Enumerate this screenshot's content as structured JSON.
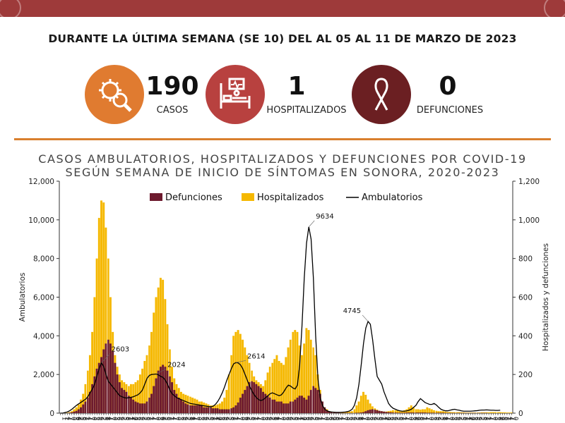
{
  "header": {
    "headline": "DURANTE LA ÚLTIMA SEMANA (SE 10) DEL AL 05 AL 11 DE MARZO DE 2023"
  },
  "stats": [
    {
      "value": "190",
      "label": "CASOS",
      "icon": "virus-magnifier-icon",
      "color": "#e07b30"
    },
    {
      "value": "1",
      "label": "HOSPITALIZADOS",
      "icon": "hospital-bed-icon",
      "color": "#b8413f"
    },
    {
      "value": "0",
      "label": "DEFUNCIONES",
      "icon": "ribbon-icon",
      "color": "#6b1f22"
    }
  ],
  "colors": {
    "topbar": "#9e3a3a",
    "divider": "#d97f2e",
    "defunciones": "#6d1a2e",
    "hospitalizados": "#f5b800",
    "ambulatorios": "#000000"
  },
  "chart_data": {
    "type": "bar",
    "title_line1": "CASOS AMBULATORIOS, HOSPITALIZADOS Y DEFUNCIONES POR COVID-19",
    "title_line2": "SEGÚN SEMANA DE INICIO DE SÍNTOMAS EN SONORA, 2020-2023",
    "ylabel": "Ambulatorios",
    "ylabel_right": "Hospitalizados y defunciones",
    "ylim": [
      0,
      12000
    ],
    "ylim_right": [
      0,
      1200
    ],
    "yticks": [
      "0",
      "2,000",
      "4,000",
      "6,000",
      "8,000",
      "10,000",
      "12,000"
    ],
    "yticks_right": [
      "0",
      "200",
      "400",
      "600",
      "800",
      "1,000",
      "1,200"
    ],
    "legend": {
      "position": "top-center",
      "items": [
        "Defunciones",
        "Hospitalizados",
        "Ambulatorios"
      ]
    },
    "annotations": [
      "2603",
      "2024",
      "2614",
      "9634",
      "4745"
    ],
    "x_tick_labels": [
      "1",
      "1",
      "4",
      "7",
      "0",
      "3",
      "6",
      "9",
      "2",
      "5",
      "8",
      "1",
      "4",
      "7",
      "0",
      "3",
      "6",
      "9",
      "2",
      "5",
      "8",
      "1",
      "4",
      "7",
      "0",
      "3",
      "6",
      "9",
      "2",
      "5",
      "8",
      "1",
      "4",
      "7",
      "0",
      "3",
      "6",
      "9",
      "2",
      "5",
      "8",
      "1",
      "4",
      "7",
      "0",
      "3",
      "6",
      "9",
      "2",
      "5",
      "8",
      "1",
      "4",
      "7",
      "0",
      "3",
      "6",
      "9",
      "2",
      "5",
      "8",
      "1",
      "4",
      "7",
      "0",
      "3",
      "6",
      "9",
      "2",
      "5",
      "8",
      "1",
      "4",
      "7",
      "0",
      "3",
      "6",
      "9",
      "2",
      "5",
      "8",
      "1",
      "4",
      "7",
      "0",
      "3",
      "6",
      "9",
      "2",
      "5",
      "8",
      "1",
      "4",
      "7",
      "0",
      "3",
      "6",
      "9",
      "2",
      "5",
      "8",
      "1",
      "4",
      "7",
      "0",
      "3",
      "6",
      "9",
      "2",
      "5",
      "8",
      "1",
      "4",
      "7",
      "0",
      "3",
      "6",
      "9",
      "2",
      "5",
      "8",
      "1",
      "4",
      "7",
      "0",
      "3",
      "6",
      "9",
      "2",
      "5",
      "8",
      "1",
      "4",
      "7",
      "0",
      "3",
      "6",
      "9",
      "2",
      "5",
      "8",
      "1",
      "4",
      "7",
      "0",
      "3",
      "6",
      "9",
      "2",
      "5",
      "8",
      "1",
      "4",
      "7",
      "0",
      "3",
      "6",
      "9",
      "2",
      "5",
      "8",
      "1",
      "4",
      "7",
      "0",
      "3",
      "6",
      "9",
      "2",
      "5",
      "8",
      "1",
      "4",
      "7",
      "0",
      "3",
      "6",
      "9",
      "2",
      "5",
      "8",
      "1",
      "4",
      "7",
      "0",
      "3",
      "6",
      "9",
      "2",
      "5",
      "8",
      "1",
      "4",
      "7",
      "0",
      "3",
      "6",
      "9",
      "2",
      "5",
      "8",
      "1",
      "4",
      "7",
      "0",
      "3",
      "6",
      "9",
      "2",
      "5",
      "8",
      "1",
      "4",
      "7",
      "0"
    ],
    "series": [
      {
        "name": "Defunciones",
        "axis": "right",
        "kind": "bar",
        "values": [
          0,
          0,
          0,
          0,
          2,
          4,
          8,
          12,
          20,
          30,
          45,
          60,
          80,
          110,
          150,
          190,
          230,
          260,
          290,
          330,
          360,
          380,
          360,
          320,
          260,
          200,
          160,
          130,
          120,
          110,
          90,
          80,
          70,
          60,
          55,
          50,
          50,
          50,
          60,
          80,
          100,
          140,
          180,
          220,
          240,
          250,
          240,
          220,
          190,
          160,
          120,
          100,
          80,
          70,
          60,
          50,
          45,
          40,
          40,
          40,
          40,
          40,
          40,
          30,
          30,
          30,
          30,
          25,
          25,
          25,
          20,
          20,
          20,
          20,
          20,
          25,
          30,
          40,
          55,
          80,
          100,
          120,
          140,
          160,
          165,
          160,
          150,
          140,
          130,
          110,
          100,
          90,
          80,
          70,
          70,
          60,
          60,
          60,
          50,
          50,
          50,
          60,
          60,
          70,
          80,
          90,
          90,
          80,
          70,
          90,
          120,
          140,
          130,
          120,
          100,
          60,
          30,
          15,
          8,
          5,
          3,
          2,
          2,
          1,
          1,
          1,
          1,
          1,
          1,
          1,
          2,
          2,
          3,
          5,
          10,
          15,
          18,
          20,
          18,
          15,
          12,
          10,
          8,
          6,
          5,
          4,
          3,
          3,
          2,
          2,
          2,
          2,
          3,
          3,
          3,
          3,
          3,
          3,
          3,
          3,
          3,
          2,
          2,
          2,
          2,
          2,
          2,
          2,
          2,
          1,
          1,
          1,
          1,
          1,
          1,
          1,
          1,
          1,
          1,
          1,
          1,
          1,
          1,
          1,
          1,
          1,
          1,
          1,
          0,
          0,
          0
        ]
      },
      {
        "name": "Hospitalizados",
        "axis": "right",
        "kind": "bar",
        "values": [
          0,
          0,
          1,
          2,
          5,
          10,
          20,
          30,
          45,
          70,
          100,
          150,
          220,
          300,
          420,
          600,
          800,
          1010,
          1100,
          1090,
          960,
          800,
          600,
          420,
          300,
          240,
          200,
          170,
          160,
          150,
          140,
          150,
          150,
          160,
          170,
          200,
          230,
          270,
          300,
          350,
          420,
          520,
          600,
          650,
          700,
          690,
          590,
          460,
          330,
          240,
          180,
          150,
          130,
          110,
          100,
          95,
          90,
          85,
          80,
          75,
          70,
          60,
          60,
          55,
          50,
          45,
          40,
          40,
          40,
          45,
          50,
          60,
          80,
          120,
          200,
          300,
          400,
          420,
          430,
          410,
          380,
          340,
          300,
          260,
          220,
          190,
          170,
          160,
          150,
          140,
          170,
          210,
          240,
          260,
          280,
          300,
          270,
          260,
          250,
          290,
          340,
          380,
          420,
          430,
          420,
          350,
          300,
          360,
          440,
          430,
          380,
          340,
          300,
          200,
          120,
          60,
          30,
          20,
          10,
          8,
          6,
          5,
          4,
          4,
          4,
          5,
          6,
          8,
          10,
          20,
          40,
          60,
          90,
          110,
          95,
          70,
          50,
          35,
          25,
          18,
          12,
          10,
          8,
          8,
          10,
          12,
          15,
          15,
          15,
          12,
          12,
          15,
          20,
          30,
          40,
          30,
          20,
          20,
          18,
          20,
          20,
          30,
          25,
          20,
          15,
          12,
          10,
          10,
          10,
          8,
          6,
          6,
          5,
          5,
          5,
          5,
          4,
          4,
          3,
          3,
          3,
          3,
          3,
          3,
          3,
          4,
          4,
          4,
          4,
          5,
          5,
          5,
          5,
          5,
          4,
          4,
          3,
          3,
          3
        ]
      },
      {
        "name": "Ambulatorios",
        "axis": "left",
        "kind": "line",
        "values": [
          0,
          0,
          30,
          60,
          120,
          200,
          300,
          400,
          480,
          560,
          640,
          720,
          850,
          1050,
          1250,
          1500,
          1900,
          2300,
          2603,
          2400,
          2000,
          1650,
          1500,
          1350,
          1200,
          1050,
          900,
          850,
          800,
          780,
          800,
          820,
          850,
          900,
          950,
          1050,
          1200,
          1500,
          1800,
          1950,
          2000,
          2010,
          2024,
          1980,
          1900,
          1850,
          1700,
          1500,
          1200,
          1000,
          900,
          800,
          750,
          700,
          650,
          600,
          550,
          500,
          480,
          460,
          440,
          420,
          400,
          380,
          360,
          340,
          330,
          360,
          450,
          600,
          800,
          1050,
          1350,
          1700,
          2000,
          2300,
          2550,
          2614,
          2600,
          2500,
          2300,
          2000,
          1700,
          1400,
          1150,
          950,
          800,
          700,
          650,
          700,
          800,
          900,
          1000,
          1050,
          1000,
          950,
          900,
          950,
          1100,
          1300,
          1450,
          1400,
          1300,
          1250,
          1450,
          2500,
          4500,
          7000,
          8800,
          9634,
          9000,
          7000,
          4000,
          1800,
          800,
          400,
          200,
          120,
          80,
          60,
          50,
          40,
          40,
          40,
          50,
          60,
          80,
          120,
          200,
          400,
          800,
          1500,
          2500,
          3600,
          4400,
          4745,
          4600,
          3800,
          2800,
          1900,
          1700,
          1500,
          1100,
          800,
          500,
          350,
          250,
          200,
          150,
          120,
          100,
          100,
          120,
          150,
          200,
          300,
          400,
          600,
          750,
          650,
          550,
          500,
          450,
          450,
          500,
          420,
          300,
          200,
          150,
          120,
          120,
          150,
          180,
          200,
          170,
          150,
          120,
          100,
          100,
          100,
          100,
          110,
          120,
          130,
          150,
          160,
          160,
          170,
          160,
          150,
          150,
          140,
          140,
          150
        ]
      }
    ]
  }
}
